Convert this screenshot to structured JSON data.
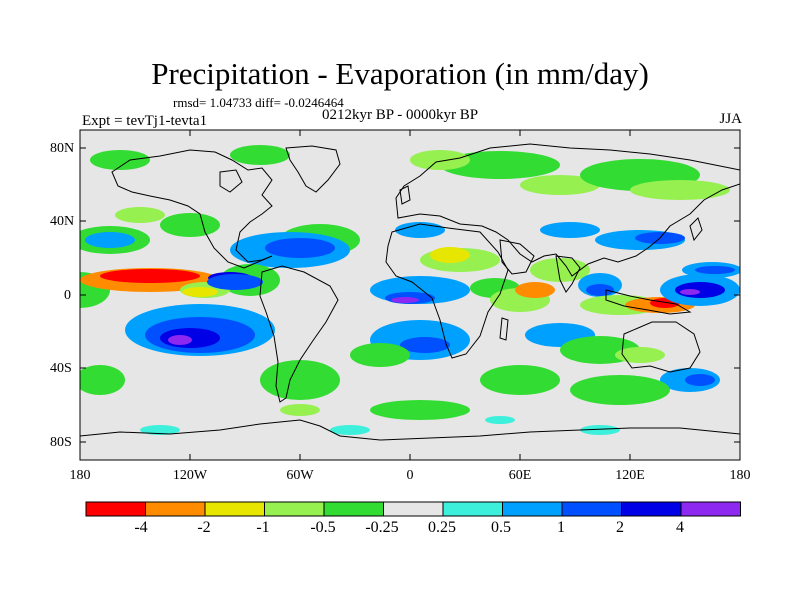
{
  "title": "Precipitation - Evaporation (in mm/day)",
  "stats": "rmsd= 1.04733 diff= -0.0246464",
  "subtitle": "0212kyr BP - 0000kyr BP",
  "experiment": "Expt = tevTj1-tevta1",
  "season": "JJA",
  "axes": {
    "y_ticks": [
      "80N",
      "40N",
      "0",
      "40S",
      "80S"
    ],
    "x_ticks": [
      "180",
      "120W",
      "60W",
      "0",
      "60E",
      "120E",
      "180"
    ]
  },
  "colorbar": {
    "colors": [
      "#ff0000",
      "#ff8c00",
      "#e6e600",
      "#96f050",
      "#32dc32",
      "#e6e6e6",
      "#3cf0dc",
      "#00a0ff",
      "#0050ff",
      "#0000e6",
      "#8c28f0"
    ],
    "labels": [
      "-4",
      "-2",
      "-1",
      "-0.5",
      "-0.25",
      "0.25",
      "0.5",
      "1",
      "2",
      "4"
    ]
  },
  "colors": {
    "ocean_neutral": "#e6e6e6",
    "coastline": "#000000"
  }
}
